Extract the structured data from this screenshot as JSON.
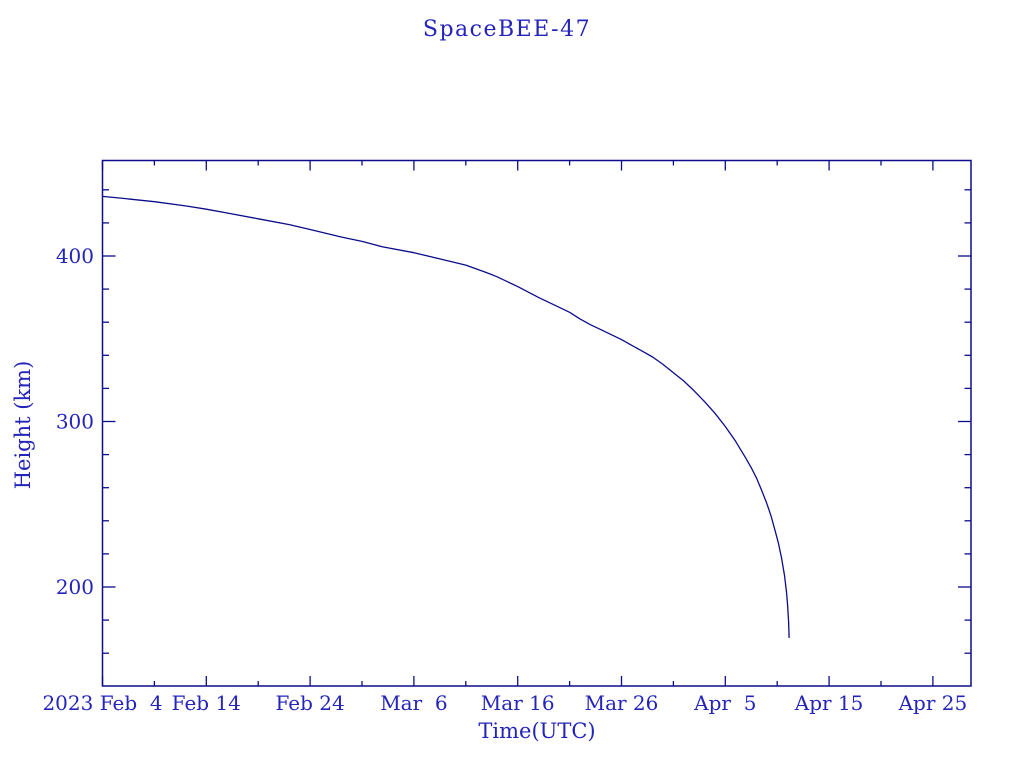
{
  "title": "SpaceBEE-47",
  "colors": {
    "background": "#ffffff",
    "text": "#2424bb",
    "line": "#0c0c8a",
    "frame": "#0c0c8a"
  },
  "chart_data": {
    "type": "line",
    "title": "SpaceBEE-47",
    "xlabel": "Time(UTC)",
    "ylabel": "Height (km)",
    "grid": false,
    "legend": "none",
    "x_axis": {
      "units": "days since 2023 Feb 4 (UTC)",
      "range_days": [
        0,
        83.9
      ],
      "major_ticks": [
        {
          "day": 0,
          "label": "2023 Feb  4"
        },
        {
          "day": 10,
          "label": "Feb 14"
        },
        {
          "day": 20,
          "label": "Feb 24"
        },
        {
          "day": 30,
          "label": "Mar  6"
        },
        {
          "day": 40,
          "label": "Mar 16"
        },
        {
          "day": 50,
          "label": "Mar 26"
        },
        {
          "day": 60,
          "label": "Apr  5"
        },
        {
          "day": 70,
          "label": "Apr 15"
        },
        {
          "day": 80,
          "label": "Apr 25"
        }
      ],
      "minor_tick_days": [
        5,
        15,
        25,
        35,
        45,
        55,
        65,
        75
      ]
    },
    "y_axis": {
      "units": "km",
      "range_km": [
        140,
        458
      ],
      "major_ticks": [
        {
          "km": 400,
          "label": "400"
        },
        {
          "km": 300,
          "label": "300"
        },
        {
          "km": 200,
          "label": "200"
        }
      ],
      "minor_tick_km": [
        160,
        180,
        220,
        240,
        260,
        280,
        320,
        340,
        360,
        380,
        420,
        440
      ]
    },
    "series": [
      {
        "name": "SpaceBEE-47 orbital height",
        "points_day_km": [
          [
            0,
            436
          ],
          [
            2,
            434.8
          ],
          [
            5,
            432.8
          ],
          [
            8,
            430.3
          ],
          [
            10,
            428.3
          ],
          [
            12,
            426
          ],
          [
            15,
            422.5
          ],
          [
            18,
            419
          ],
          [
            20,
            416
          ],
          [
            23,
            411.5
          ],
          [
            25,
            408.8
          ],
          [
            27,
            405.5
          ],
          [
            30,
            402
          ],
          [
            33,
            397.5
          ],
          [
            35,
            394.5
          ],
          [
            37,
            390
          ],
          [
            38,
            387.5
          ],
          [
            40,
            381.5
          ],
          [
            42,
            375
          ],
          [
            44,
            369
          ],
          [
            45,
            366
          ],
          [
            46,
            362
          ],
          [
            47,
            358.5
          ],
          [
            48,
            355.5
          ],
          [
            49,
            352.5
          ],
          [
            50,
            349.5
          ],
          [
            51,
            346
          ],
          [
            52,
            342.5
          ],
          [
            53,
            339
          ],
          [
            54,
            334.5
          ],
          [
            55,
            329.5
          ],
          [
            56,
            324.5
          ],
          [
            57,
            318.5
          ],
          [
            58,
            312
          ],
          [
            59,
            305
          ],
          [
            60,
            297
          ],
          [
            61,
            288
          ],
          [
            62,
            277.5
          ],
          [
            62.5,
            272
          ],
          [
            63,
            266
          ],
          [
            63.5,
            258.5
          ],
          [
            64,
            250.5
          ],
          [
            64.4,
            243
          ],
          [
            64.8,
            234
          ],
          [
            65.1,
            227
          ],
          [
            65.4,
            218
          ],
          [
            65.7,
            207
          ],
          [
            65.9,
            197
          ],
          [
            66.0,
            189
          ],
          [
            66.1,
            179
          ],
          [
            66.15,
            169.5
          ]
        ],
        "start": {
          "date": "2023 Feb 4",
          "height_km": 436
        },
        "end": {
          "date": "2023 Apr 11",
          "height_km": 170
        }
      }
    ]
  }
}
